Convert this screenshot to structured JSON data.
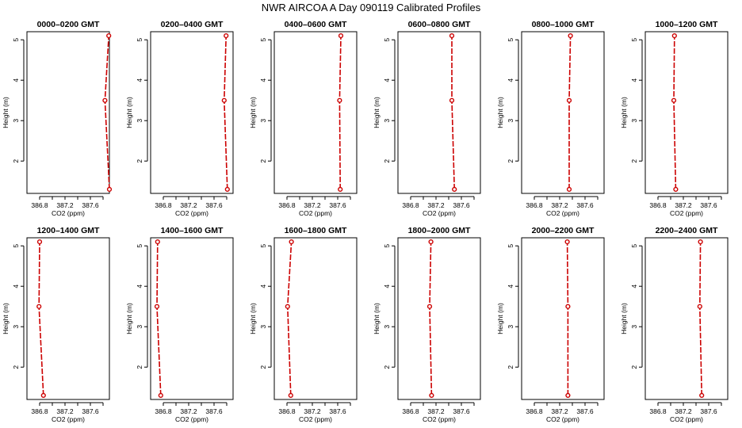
{
  "title": "NWR AIRCOA A  Day 090119  Calibrated Profiles",
  "chart_data": {
    "type": "line",
    "xlabel": "CO2 (ppm)",
    "ylabel": "Height (m)",
    "xlim": [
      386.6,
      387.9
    ],
    "ylim": [
      1.2,
      5.2
    ],
    "x_ticks": [
      "386.8",
      "387.2",
      "387.6"
    ],
    "x_minor_ticks": [
      387.0,
      387.4,
      387.8
    ],
    "y_ticks": [
      "2",
      "3",
      "4",
      "5"
    ],
    "color": "#cc0000",
    "panels": [
      {
        "title": "0000–0200 GMT",
        "points": [
          {
            "x": 387.9,
            "y": 1.3
          },
          {
            "x": 387.83,
            "y": 3.5
          },
          {
            "x": 387.89,
            "y": 5.1
          }
        ]
      },
      {
        "title": "0200–0400 GMT",
        "points": [
          {
            "x": 387.81,
            "y": 1.3
          },
          {
            "x": 387.76,
            "y": 3.5
          },
          {
            "x": 387.79,
            "y": 5.1
          }
        ]
      },
      {
        "title": "0400–0600 GMT",
        "points": [
          {
            "x": 387.64,
            "y": 1.3
          },
          {
            "x": 387.63,
            "y": 3.5
          },
          {
            "x": 387.65,
            "y": 5.1
          }
        ]
      },
      {
        "title": "0600–0800 GMT",
        "points": [
          {
            "x": 387.49,
            "y": 1.3
          },
          {
            "x": 387.45,
            "y": 3.5
          },
          {
            "x": 387.45,
            "y": 5.1
          }
        ]
      },
      {
        "title": "0800–1000 GMT",
        "points": [
          {
            "x": 387.35,
            "y": 1.3
          },
          {
            "x": 387.35,
            "y": 3.5
          },
          {
            "x": 387.37,
            "y": 5.1
          }
        ]
      },
      {
        "title": "1000–1200 GMT",
        "points": [
          {
            "x": 387.08,
            "y": 1.3
          },
          {
            "x": 387.05,
            "y": 3.5
          },
          {
            "x": 387.06,
            "y": 5.1
          }
        ]
      },
      {
        "title": "1200–1400 GMT",
        "points": [
          {
            "x": 386.86,
            "y": 1.3
          },
          {
            "x": 386.79,
            "y": 3.5
          },
          {
            "x": 386.8,
            "y": 5.1
          }
        ]
      },
      {
        "title": "1400–1600 GMT",
        "points": [
          {
            "x": 386.76,
            "y": 1.3
          },
          {
            "x": 386.7,
            "y": 3.5
          },
          {
            "x": 386.71,
            "y": 5.1
          }
        ]
      },
      {
        "title": "1600–1800 GMT",
        "points": [
          {
            "x": 386.86,
            "y": 1.3
          },
          {
            "x": 386.81,
            "y": 3.5
          },
          {
            "x": 386.87,
            "y": 5.1
          }
        ]
      },
      {
        "title": "1800–2000 GMT",
        "points": [
          {
            "x": 387.13,
            "y": 1.3
          },
          {
            "x": 387.1,
            "y": 3.5
          },
          {
            "x": 387.12,
            "y": 5.1
          }
        ]
      },
      {
        "title": "2000–2200 GMT",
        "points": [
          {
            "x": 387.33,
            "y": 1.3
          },
          {
            "x": 387.33,
            "y": 3.5
          },
          {
            "x": 387.32,
            "y": 5.1
          }
        ]
      },
      {
        "title": "2200–2400 GMT",
        "points": [
          {
            "x": 387.49,
            "y": 1.3
          },
          {
            "x": 387.46,
            "y": 3.5
          },
          {
            "x": 387.47,
            "y": 5.1
          }
        ]
      }
    ]
  }
}
